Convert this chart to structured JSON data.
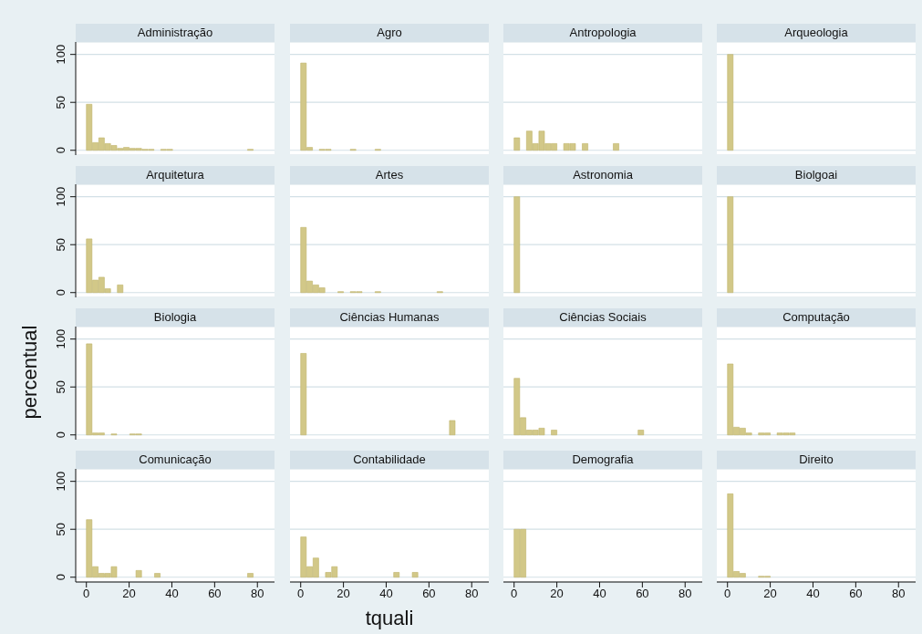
{
  "chart_data": [
    {
      "type": "histogram",
      "title": "Administração",
      "bins": [
        0,
        2.9,
        5.8,
        8.7,
        11.6,
        14.5,
        17.4,
        20.3,
        23.2,
        26.1,
        29,
        31.9,
        34.8,
        37.7,
        40.6,
        43.5,
        46.4,
        49.3,
        52.2,
        55.1,
        58,
        60.9,
        63.8,
        66.7,
        69.6,
        72.5,
        75.4,
        78.3
      ],
      "values": [
        48,
        8,
        13,
        7,
        5,
        2,
        3,
        2,
        2,
        1,
        1,
        0,
        1,
        1,
        0,
        0,
        0,
        0,
        0,
        0,
        0,
        0,
        0,
        0,
        0,
        0,
        1
      ],
      "color": "#d2c888",
      "xlim": [
        -5,
        88
      ],
      "ylim": [
        -5,
        113
      ],
      "yticks": [
        0,
        50,
        100
      ],
      "xticks": [
        0,
        20,
        40,
        60,
        80
      ],
      "grid": "y",
      "tick_labels": "y"
    },
    {
      "type": "histogram",
      "title": "Agro",
      "bins": [
        0,
        2.9,
        5.8,
        8.7,
        11.6,
        14.5,
        17.4,
        20.3,
        23.2,
        26.1,
        29,
        31.9,
        34.8,
        37.7,
        40.6,
        43.5,
        46.4,
        49.3,
        52.2,
        55.1,
        58,
        60.9,
        63.8,
        66.7,
        69.6,
        72.5,
        75.4,
        78.3
      ],
      "values": [
        91,
        3,
        0,
        1,
        1,
        0,
        0,
        0,
        1,
        0,
        0,
        0,
        1,
        0,
        0,
        0,
        0,
        0,
        0,
        0,
        0,
        0,
        0,
        0,
        0,
        0,
        0
      ],
      "color": "#d2c888",
      "xlim": [
        -5,
        88
      ],
      "ylim": [
        -5,
        113
      ],
      "yticks": [
        0,
        50,
        100
      ],
      "xticks": [
        0,
        20,
        40,
        60,
        80
      ],
      "grid": "y",
      "tick_labels": false
    },
    {
      "type": "histogram",
      "title": "Antropologia",
      "bins": [
        0,
        2.9,
        5.8,
        8.7,
        11.6,
        14.5,
        17.4,
        20.3,
        23.2,
        26.1,
        29,
        31.9,
        34.8,
        37.7,
        40.6,
        43.5,
        46.4,
        49.3,
        52.2,
        55.1,
        58,
        60.9,
        63.8,
        66.7,
        69.6,
        72.5,
        75.4,
        78.3
      ],
      "values": [
        13,
        0,
        20,
        7,
        20,
        7,
        7,
        0,
        7,
        7,
        0,
        7,
        0,
        0,
        0,
        0,
        7,
        0,
        0,
        0,
        0,
        0,
        0,
        0,
        0,
        0,
        0
      ],
      "color": "#d2c888",
      "xlim": [
        -5,
        88
      ],
      "ylim": [
        -5,
        113
      ],
      "yticks": [
        0,
        50,
        100
      ],
      "xticks": [
        0,
        20,
        40,
        60,
        80
      ],
      "grid": "y",
      "tick_labels": false
    },
    {
      "type": "histogram",
      "title": "Arqueologia",
      "bins": [
        0,
        2.9,
        5.8,
        8.7,
        11.6,
        14.5,
        17.4,
        20.3,
        23.2,
        26.1,
        29,
        31.9,
        34.8,
        37.7,
        40.6,
        43.5,
        46.4,
        49.3,
        52.2,
        55.1,
        58,
        60.9,
        63.8,
        66.7,
        69.6,
        72.5,
        75.4,
        78.3
      ],
      "values": [
        100,
        0,
        0,
        0,
        0,
        0,
        0,
        0,
        0,
        0,
        0,
        0,
        0,
        0,
        0,
        0,
        0,
        0,
        0,
        0,
        0,
        0,
        0,
        0,
        0,
        0,
        0
      ],
      "color": "#d2c888",
      "xlim": [
        -5,
        88
      ],
      "ylim": [
        -5,
        113
      ],
      "yticks": [
        0,
        50,
        100
      ],
      "xticks": [
        0,
        20,
        40,
        60,
        80
      ],
      "grid": "y",
      "tick_labels": false
    },
    {
      "type": "histogram",
      "title": "Arquitetura",
      "bins": [
        0,
        2.9,
        5.8,
        8.7,
        11.6,
        14.5,
        17.4,
        20.3,
        23.2,
        26.1,
        29,
        31.9,
        34.8,
        37.7,
        40.6,
        43.5,
        46.4,
        49.3,
        52.2,
        55.1,
        58,
        60.9,
        63.8,
        66.7,
        69.6,
        72.5,
        75.4,
        78.3
      ],
      "values": [
        56,
        13,
        16,
        4,
        0,
        8,
        0,
        0,
        0,
        0,
        0,
        0,
        0,
        0,
        0,
        0,
        0,
        0,
        0,
        0,
        0,
        0,
        0,
        0,
        0,
        0,
        0
      ],
      "color": "#d2c888",
      "xlim": [
        -5,
        88
      ],
      "ylim": [
        -5,
        113
      ],
      "yticks": [
        0,
        50,
        100
      ],
      "xticks": [
        0,
        20,
        40,
        60,
        80
      ],
      "grid": "y",
      "tick_labels": "y"
    },
    {
      "type": "histogram",
      "title": "Artes",
      "bins": [
        0,
        2.9,
        5.8,
        8.7,
        11.6,
        14.5,
        17.4,
        20.3,
        23.2,
        26.1,
        29,
        31.9,
        34.8,
        37.7,
        40.6,
        43.5,
        46.4,
        49.3,
        52.2,
        55.1,
        58,
        60.9,
        63.8,
        66.7,
        69.6,
        72.5,
        75.4,
        78.3
      ],
      "values": [
        68,
        12,
        8,
        5,
        0,
        0,
        1,
        0,
        1,
        1,
        0,
        0,
        1,
        0,
        0,
        0,
        0,
        0,
        0,
        0,
        0,
        0,
        1,
        0,
        0,
        0,
        0
      ],
      "color": "#d2c888",
      "xlim": [
        -5,
        88
      ],
      "ylim": [
        -5,
        113
      ],
      "yticks": [
        0,
        50,
        100
      ],
      "xticks": [
        0,
        20,
        40,
        60,
        80
      ],
      "grid": "y",
      "tick_labels": false
    },
    {
      "type": "histogram",
      "title": "Astronomia",
      "bins": [
        0,
        2.9,
        5.8,
        8.7,
        11.6,
        14.5,
        17.4,
        20.3,
        23.2,
        26.1,
        29,
        31.9,
        34.8,
        37.7,
        40.6,
        43.5,
        46.4,
        49.3,
        52.2,
        55.1,
        58,
        60.9,
        63.8,
        66.7,
        69.6,
        72.5,
        75.4,
        78.3
      ],
      "values": [
        100,
        0,
        0,
        0,
        0,
        0,
        0,
        0,
        0,
        0,
        0,
        0,
        0,
        0,
        0,
        0,
        0,
        0,
        0,
        0,
        0,
        0,
        0,
        0,
        0,
        0,
        0
      ],
      "color": "#d2c888",
      "xlim": [
        -5,
        88
      ],
      "ylim": [
        -5,
        113
      ],
      "yticks": [
        0,
        50,
        100
      ],
      "xticks": [
        0,
        20,
        40,
        60,
        80
      ],
      "grid": "y",
      "tick_labels": false
    },
    {
      "type": "histogram",
      "title": "Biolgoai",
      "bins": [
        0,
        2.9,
        5.8,
        8.7,
        11.6,
        14.5,
        17.4,
        20.3,
        23.2,
        26.1,
        29,
        31.9,
        34.8,
        37.7,
        40.6,
        43.5,
        46.4,
        49.3,
        52.2,
        55.1,
        58,
        60.9,
        63.8,
        66.7,
        69.6,
        72.5,
        75.4,
        78.3
      ],
      "values": [
        100,
        0,
        0,
        0,
        0,
        0,
        0,
        0,
        0,
        0,
        0,
        0,
        0,
        0,
        0,
        0,
        0,
        0,
        0,
        0,
        0,
        0,
        0,
        0,
        0,
        0,
        0
      ],
      "color": "#d2c888",
      "xlim": [
        -5,
        88
      ],
      "ylim": [
        -5,
        113
      ],
      "yticks": [
        0,
        50,
        100
      ],
      "xticks": [
        0,
        20,
        40,
        60,
        80
      ],
      "grid": "y",
      "tick_labels": false
    },
    {
      "type": "histogram",
      "title": "Biologia",
      "ylabel": "percentual",
      "bins": [
        0,
        2.9,
        5.8,
        8.7,
        11.6,
        14.5,
        17.4,
        20.3,
        23.2,
        26.1,
        29,
        31.9,
        34.8,
        37.7,
        40.6,
        43.5,
        46.4,
        49.3,
        52.2,
        55.1,
        58,
        60.9,
        63.8,
        66.7,
        69.6,
        72.5,
        75.4,
        78.3
      ],
      "values": [
        95,
        2,
        2,
        0,
        1,
        0,
        0,
        1,
        1,
        0,
        0,
        0,
        0,
        0,
        0,
        0,
        0,
        0,
        0,
        0,
        0,
        0,
        0,
        0,
        0,
        0,
        0
      ],
      "color": "#d2c888",
      "xlim": [
        -5,
        88
      ],
      "ylim": [
        -5,
        113
      ],
      "yticks": [
        0,
        50,
        100
      ],
      "xticks": [
        0,
        20,
        40,
        60,
        80
      ],
      "grid": "y",
      "tick_labels": "y"
    },
    {
      "type": "histogram",
      "title": "Ciências Humanas",
      "bins": [
        0,
        2.9,
        5.8,
        8.7,
        11.6,
        14.5,
        17.4,
        20.3,
        23.2,
        26.1,
        29,
        31.9,
        34.8,
        37.7,
        40.6,
        43.5,
        46.4,
        49.3,
        52.2,
        55.1,
        58,
        60.9,
        63.8,
        66.7,
        69.6,
        72.5,
        75.4,
        78.3
      ],
      "values": [
        85,
        0,
        0,
        0,
        0,
        0,
        0,
        0,
        0,
        0,
        0,
        0,
        0,
        0,
        0,
        0,
        0,
        0,
        0,
        0,
        0,
        0,
        0,
        0,
        15,
        0,
        0
      ],
      "color": "#d2c888",
      "xlim": [
        -5,
        88
      ],
      "ylim": [
        -5,
        113
      ],
      "yticks": [
        0,
        50,
        100
      ],
      "xticks": [
        0,
        20,
        40,
        60,
        80
      ],
      "grid": "y",
      "tick_labels": false
    },
    {
      "type": "histogram",
      "title": "Ciências Sociais",
      "bins": [
        0,
        2.9,
        5.8,
        8.7,
        11.6,
        14.5,
        17.4,
        20.3,
        23.2,
        26.1,
        29,
        31.9,
        34.8,
        37.7,
        40.6,
        43.5,
        46.4,
        49.3,
        52.2,
        55.1,
        58,
        60.9,
        63.8,
        66.7,
        69.6,
        72.5,
        75.4,
        78.3
      ],
      "values": [
        59,
        18,
        5,
        5,
        7,
        0,
        5,
        0,
        0,
        0,
        0,
        0,
        0,
        0,
        0,
        0,
        0,
        0,
        0,
        0,
        5,
        0,
        0,
        0,
        0,
        0,
        0
      ],
      "color": "#d2c888",
      "xlim": [
        -5,
        88
      ],
      "ylim": [
        -5,
        113
      ],
      "yticks": [
        0,
        50,
        100
      ],
      "xticks": [
        0,
        20,
        40,
        60,
        80
      ],
      "grid": "y",
      "tick_labels": false
    },
    {
      "type": "histogram",
      "title": "Computação",
      "bins": [
        0,
        2.9,
        5.8,
        8.7,
        11.6,
        14.5,
        17.4,
        20.3,
        23.2,
        26.1,
        29,
        31.9,
        34.8,
        37.7,
        40.6,
        43.5,
        46.4,
        49.3,
        52.2,
        55.1,
        58,
        60.9,
        63.8,
        66.7,
        69.6,
        72.5,
        75.4,
        78.3
      ],
      "values": [
        74,
        8,
        7,
        2,
        0,
        2,
        2,
        0,
        2,
        2,
        2,
        0,
        0,
        0,
        0,
        0,
        0,
        0,
        0,
        0,
        0,
        0,
        0,
        0,
        0,
        0,
        0
      ],
      "color": "#d2c888",
      "xlim": [
        -5,
        88
      ],
      "ylim": [
        -5,
        113
      ],
      "yticks": [
        0,
        50,
        100
      ],
      "xticks": [
        0,
        20,
        40,
        60,
        80
      ],
      "grid": "y",
      "tick_labels": false
    },
    {
      "type": "histogram",
      "title": "Comunicação",
      "bins": [
        0,
        2.9,
        5.8,
        8.7,
        11.6,
        14.5,
        17.4,
        20.3,
        23.2,
        26.1,
        29,
        31.9,
        34.8,
        37.7,
        40.6,
        43.5,
        46.4,
        49.3,
        52.2,
        55.1,
        58,
        60.9,
        63.8,
        66.7,
        69.6,
        72.5,
        75.4,
        78.3
      ],
      "values": [
        60,
        11,
        4,
        4,
        11,
        0,
        0,
        0,
        7,
        0,
        0,
        4,
        0,
        0,
        0,
        0,
        0,
        0,
        0,
        0,
        0,
        0,
        0,
        0,
        0,
        0,
        4
      ],
      "color": "#d2c888",
      "xlim": [
        -5,
        88
      ],
      "ylim": [
        -5,
        113
      ],
      "yticks": [
        0,
        50,
        100
      ],
      "xticks": [
        0,
        20,
        40,
        60,
        80
      ],
      "grid": "y",
      "tick_labels": "xy"
    },
    {
      "type": "histogram",
      "title": "Contabilidade",
      "xlabel": "tquali",
      "bins": [
        0,
        2.9,
        5.8,
        8.7,
        11.6,
        14.5,
        17.4,
        20.3,
        23.2,
        26.1,
        29,
        31.9,
        34.8,
        37.7,
        40.6,
        43.5,
        46.4,
        49.3,
        52.2,
        55.1,
        58,
        60.9,
        63.8,
        66.7,
        69.6,
        72.5,
        75.4,
        78.3
      ],
      "values": [
        42,
        11,
        20,
        0,
        5,
        11,
        0,
        0,
        0,
        0,
        0,
        0,
        0,
        0,
        0,
        5,
        0,
        0,
        5,
        0,
        0,
        0,
        0,
        0,
        0,
        0,
        0
      ],
      "color": "#d2c888",
      "xlim": [
        -5,
        88
      ],
      "ylim": [
        -5,
        113
      ],
      "yticks": [
        0,
        50,
        100
      ],
      "xticks": [
        0,
        20,
        40,
        60,
        80
      ],
      "grid": "y",
      "tick_labels": "x"
    },
    {
      "type": "histogram",
      "title": "Demografia",
      "bins": [
        0,
        2.9,
        5.8,
        8.7,
        11.6,
        14.5,
        17.4,
        20.3,
        23.2,
        26.1,
        29,
        31.9,
        34.8,
        37.7,
        40.6,
        43.5,
        46.4,
        49.3,
        52.2,
        55.1,
        58,
        60.9,
        63.8,
        66.7,
        69.6,
        72.5,
        75.4,
        78.3
      ],
      "values": [
        50,
        50,
        0,
        0,
        0,
        0,
        0,
        0,
        0,
        0,
        0,
        0,
        0,
        0,
        0,
        0,
        0,
        0,
        0,
        0,
        0,
        0,
        0,
        0,
        0,
        0,
        0
      ],
      "color": "#d2c888",
      "xlim": [
        -5,
        88
      ],
      "ylim": [
        -5,
        113
      ],
      "yticks": [
        0,
        50,
        100
      ],
      "xticks": [
        0,
        20,
        40,
        60,
        80
      ],
      "grid": "y",
      "tick_labels": "x"
    },
    {
      "type": "histogram",
      "title": "Direito",
      "bins": [
        0,
        2.9,
        5.8,
        8.7,
        11.6,
        14.5,
        17.4,
        20.3,
        23.2,
        26.1,
        29,
        31.9,
        34.8,
        37.7,
        40.6,
        43.5,
        46.4,
        49.3,
        52.2,
        55.1,
        58,
        60.9,
        63.8,
        66.7,
        69.6,
        72.5,
        75.4,
        78.3
      ],
      "values": [
        87,
        6,
        4,
        0,
        0,
        1,
        1,
        0,
        0,
        0,
        0,
        0,
        0,
        0,
        0,
        0,
        0,
        0,
        0,
        0,
        0,
        0,
        0,
        0,
        0,
        0,
        0
      ],
      "color": "#d2c888",
      "xlim": [
        -5,
        88
      ],
      "ylim": [
        -5,
        113
      ],
      "yticks": [
        0,
        50,
        100
      ],
      "xticks": [
        0,
        20,
        40,
        60,
        80
      ],
      "grid": "y",
      "tick_labels": "x"
    }
  ]
}
